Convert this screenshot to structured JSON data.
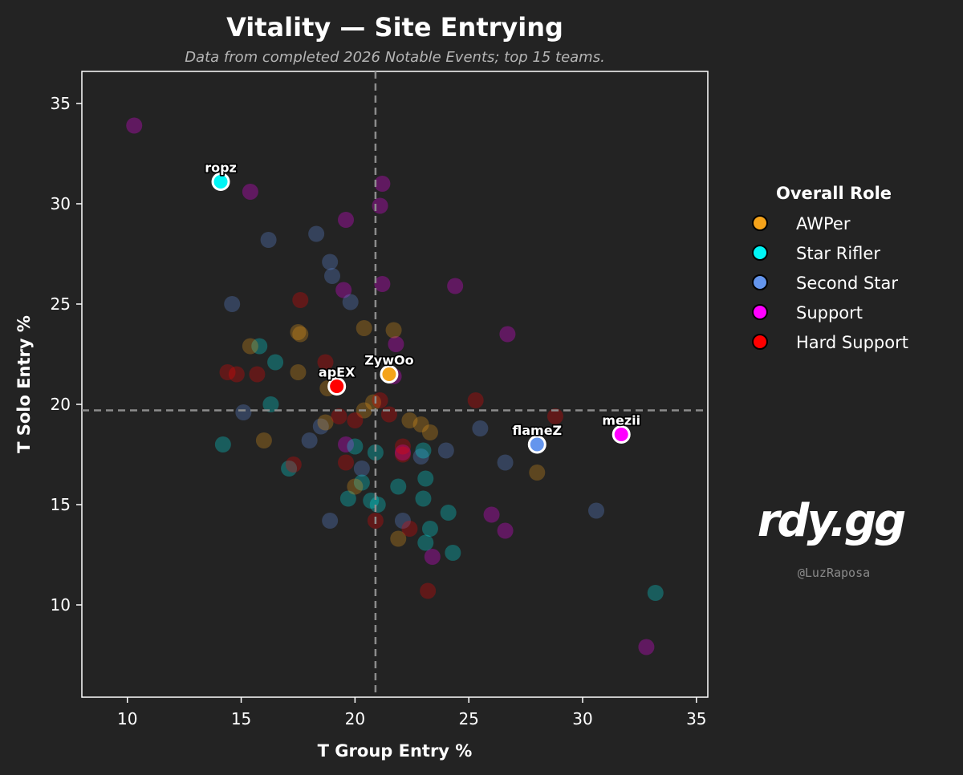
{
  "chart_data": {
    "type": "scatter",
    "title": "Vitality — Site Entrying",
    "subtitle": "Data from completed 2026 Notable Events; top 15 teams.",
    "xlabel": "T Group Entry %",
    "ylabel": "T Solo Entry %",
    "xlim": [
      8,
      35.5
    ],
    "ylim": [
      5.4,
      36.6
    ],
    "xticks": [
      10,
      15,
      20,
      25,
      30,
      35
    ],
    "yticks": [
      10,
      15,
      20,
      25,
      30,
      35
    ],
    "grid": false,
    "reference_lines": {
      "x_mean": 20.9,
      "y_mean": 19.7
    },
    "legend": {
      "title": "Overall Role",
      "position": "right",
      "entries": [
        {
          "label": "AWPer",
          "color": "#f5a31a"
        },
        {
          "label": "Star Rifler",
          "color": "#00f5f5"
        },
        {
          "label": "Second Star",
          "color": "#6495ed"
        },
        {
          "label": "Support",
          "color": "#ff00ff"
        },
        {
          "label": "Hard Support",
          "color": "#ff0000"
        }
      ]
    },
    "highlighted": [
      {
        "name": "ropz",
        "role": "Star Rifler",
        "x": 14.1,
        "y": 31.1
      },
      {
        "name": "ZywOo",
        "role": "AWPer",
        "x": 21.5,
        "y": 21.5
      },
      {
        "name": "apEX",
        "role": "Hard Support",
        "x": 19.2,
        "y": 20.9
      },
      {
        "name": "flameZ",
        "role": "Second Star",
        "x": 28.0,
        "y": 18.0
      },
      {
        "name": "mezii",
        "role": "Support",
        "x": 31.7,
        "y": 18.5
      }
    ],
    "background_points": [
      {
        "role": "Support",
        "x": 10.3,
        "y": 33.9
      },
      {
        "role": "Support",
        "x": 15.4,
        "y": 30.6
      },
      {
        "role": "Support",
        "x": 21.2,
        "y": 31.0
      },
      {
        "role": "Support",
        "x": 21.1,
        "y": 29.9
      },
      {
        "role": "Support",
        "x": 19.6,
        "y": 29.2
      },
      {
        "role": "Support",
        "x": 21.2,
        "y": 26.0
      },
      {
        "role": "Support",
        "x": 19.5,
        "y": 25.7
      },
      {
        "role": "Support",
        "x": 24.4,
        "y": 25.9
      },
      {
        "role": "Support",
        "x": 26.7,
        "y": 23.5
      },
      {
        "role": "Support",
        "x": 21.8,
        "y": 23.0
      },
      {
        "role": "Support",
        "x": 21.7,
        "y": 21.4
      },
      {
        "role": "Support",
        "x": 19.6,
        "y": 18.0
      },
      {
        "role": "Support",
        "x": 22.1,
        "y": 17.6
      },
      {
        "role": "Support",
        "x": 26.0,
        "y": 14.5
      },
      {
        "role": "Support",
        "x": 26.6,
        "y": 13.7
      },
      {
        "role": "Support",
        "x": 23.4,
        "y": 12.4
      },
      {
        "role": "Support",
        "x": 32.8,
        "y": 7.9
      },
      {
        "role": "Second Star",
        "x": 16.2,
        "y": 28.2
      },
      {
        "role": "Second Star",
        "x": 18.3,
        "y": 28.5
      },
      {
        "role": "Second Star",
        "x": 18.9,
        "y": 27.1
      },
      {
        "role": "Second Star",
        "x": 19.0,
        "y": 26.4
      },
      {
        "role": "Second Star",
        "x": 14.6,
        "y": 25.0
      },
      {
        "role": "Second Star",
        "x": 19.8,
        "y": 25.1
      },
      {
        "role": "Second Star",
        "x": 15.1,
        "y": 19.6
      },
      {
        "role": "Second Star",
        "x": 18.5,
        "y": 18.9
      },
      {
        "role": "Second Star",
        "x": 18.0,
        "y": 18.2
      },
      {
        "role": "Second Star",
        "x": 20.3,
        "y": 16.8
      },
      {
        "role": "Second Star",
        "x": 22.9,
        "y": 17.4
      },
      {
        "role": "Second Star",
        "x": 24.0,
        "y": 17.7
      },
      {
        "role": "Second Star",
        "x": 25.5,
        "y": 18.8
      },
      {
        "role": "Second Star",
        "x": 26.6,
        "y": 17.1
      },
      {
        "role": "Second Star",
        "x": 18.9,
        "y": 14.2
      },
      {
        "role": "Second Star",
        "x": 22.1,
        "y": 14.2
      },
      {
        "role": "Second Star",
        "x": 30.6,
        "y": 14.7
      },
      {
        "role": "Star Rifler",
        "x": 15.8,
        "y": 22.9
      },
      {
        "role": "Star Rifler",
        "x": 16.5,
        "y": 22.1
      },
      {
        "role": "Star Rifler",
        "x": 16.3,
        "y": 20.0
      },
      {
        "role": "Star Rifler",
        "x": 14.2,
        "y": 18.0
      },
      {
        "role": "Star Rifler",
        "x": 17.1,
        "y": 16.8
      },
      {
        "role": "Star Rifler",
        "x": 20.0,
        "y": 17.9
      },
      {
        "role": "Star Rifler",
        "x": 20.9,
        "y": 17.6
      },
      {
        "role": "Star Rifler",
        "x": 23.0,
        "y": 17.7
      },
      {
        "role": "Star Rifler",
        "x": 20.3,
        "y": 16.1
      },
      {
        "role": "Star Rifler",
        "x": 19.7,
        "y": 15.3
      },
      {
        "role": "Star Rifler",
        "x": 20.7,
        "y": 15.2
      },
      {
        "role": "Star Rifler",
        "x": 21.0,
        "y": 15.0
      },
      {
        "role": "Star Rifler",
        "x": 21.9,
        "y": 15.9
      },
      {
        "role": "Star Rifler",
        "x": 23.1,
        "y": 16.3
      },
      {
        "role": "Star Rifler",
        "x": 23.0,
        "y": 15.3
      },
      {
        "role": "Star Rifler",
        "x": 24.1,
        "y": 14.6
      },
      {
        "role": "Star Rifler",
        "x": 23.3,
        "y": 13.8
      },
      {
        "role": "Star Rifler",
        "x": 23.1,
        "y": 13.1
      },
      {
        "role": "Star Rifler",
        "x": 24.3,
        "y": 12.6
      },
      {
        "role": "Star Rifler",
        "x": 33.2,
        "y": 10.6
      },
      {
        "role": "AWPer",
        "x": 15.4,
        "y": 22.9
      },
      {
        "role": "AWPer",
        "x": 17.5,
        "y": 23.6
      },
      {
        "role": "AWPer",
        "x": 17.6,
        "y": 23.5
      },
      {
        "role": "AWPer",
        "x": 20.4,
        "y": 23.8
      },
      {
        "role": "AWPer",
        "x": 21.7,
        "y": 23.7
      },
      {
        "role": "AWPer",
        "x": 17.5,
        "y": 21.6
      },
      {
        "role": "AWPer",
        "x": 18.8,
        "y": 20.8
      },
      {
        "role": "AWPer",
        "x": 20.8,
        "y": 20.1
      },
      {
        "role": "AWPer",
        "x": 20.4,
        "y": 19.7
      },
      {
        "role": "AWPer",
        "x": 18.7,
        "y": 19.1
      },
      {
        "role": "AWPer",
        "x": 16.0,
        "y": 18.2
      },
      {
        "role": "AWPer",
        "x": 22.4,
        "y": 19.2
      },
      {
        "role": "AWPer",
        "x": 22.9,
        "y": 19.0
      },
      {
        "role": "AWPer",
        "x": 23.3,
        "y": 18.6
      },
      {
        "role": "AWPer",
        "x": 20.0,
        "y": 15.9
      },
      {
        "role": "AWPer",
        "x": 21.9,
        "y": 13.3
      },
      {
        "role": "AWPer",
        "x": 28.0,
        "y": 16.6
      },
      {
        "role": "Hard Support",
        "x": 17.6,
        "y": 25.2
      },
      {
        "role": "Hard Support",
        "x": 18.7,
        "y": 22.1
      },
      {
        "role": "Hard Support",
        "x": 14.4,
        "y": 21.6
      },
      {
        "role": "Hard Support",
        "x": 14.8,
        "y": 21.5
      },
      {
        "role": "Hard Support",
        "x": 15.7,
        "y": 21.5
      },
      {
        "role": "Hard Support",
        "x": 19.3,
        "y": 19.4
      },
      {
        "role": "Hard Support",
        "x": 20.0,
        "y": 19.2
      },
      {
        "role": "Hard Support",
        "x": 21.1,
        "y": 20.2
      },
      {
        "role": "Hard Support",
        "x": 21.5,
        "y": 19.5
      },
      {
        "role": "Hard Support",
        "x": 22.1,
        "y": 17.9
      },
      {
        "role": "Hard Support",
        "x": 22.1,
        "y": 17.5
      },
      {
        "role": "Hard Support",
        "x": 19.6,
        "y": 17.1
      },
      {
        "role": "Hard Support",
        "x": 17.3,
        "y": 17.0
      },
      {
        "role": "Hard Support",
        "x": 25.3,
        "y": 20.2
      },
      {
        "role": "Hard Support",
        "x": 28.8,
        "y": 19.4
      },
      {
        "role": "Hard Support",
        "x": 20.9,
        "y": 14.2
      },
      {
        "role": "Hard Support",
        "x": 22.4,
        "y": 13.8
      },
      {
        "role": "Hard Support",
        "x": 23.2,
        "y": 10.7
      }
    ]
  },
  "branding": {
    "logo_text": "rdy.gg",
    "handle": "@LuzRaposa"
  }
}
